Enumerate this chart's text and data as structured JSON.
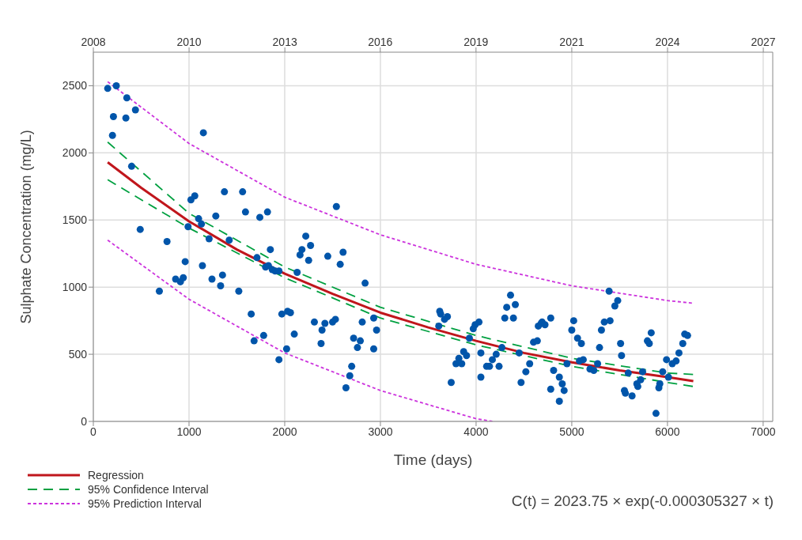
{
  "chart_data": {
    "type": "scatter",
    "xlabel": "Time (days)",
    "ylabel": "Sulphate Concentration (mg/L)",
    "xlim": [
      0,
      7100
    ],
    "xticks": [
      0,
      1000,
      2000,
      3000,
      4000,
      5000,
      6000,
      7000
    ],
    "x2lim": [
      2007.6,
      2027.04
    ],
    "x2ticks": [
      {
        "value": 2007.6,
        "label": "2008"
      },
      {
        "value": 2010.34,
        "label": "2010"
      },
      {
        "value": 2013.08,
        "label": "2013"
      },
      {
        "value": 2015.81,
        "label": "2016"
      },
      {
        "value": 2018.55,
        "label": "2019"
      },
      {
        "value": 2021.29,
        "label": "2021"
      },
      {
        "value": 2024.03,
        "label": "2024"
      },
      {
        "value": 2026.77,
        "label": "2027"
      }
    ],
    "ylim": [
      0,
      2750
    ],
    "yticks": [
      0,
      500,
      1000,
      1500,
      2000,
      2500
    ],
    "grid": true,
    "legend": "bottom left",
    "annotations": [
      "C(t) = 2023.75 × exp(-0.000305327 × t)"
    ],
    "series": [
      {
        "color": "#0055aa",
        "marker": "circle",
        "x": [
          150,
          240,
          350,
          210,
          340,
          440,
          200,
          1150,
          400,
          490,
          770,
          690,
          960,
          860,
          910,
          940,
          990,
          1020,
          1060,
          1100,
          1130,
          1210,
          1140,
          1240,
          1280,
          1330,
          1350,
          1370,
          1420,
          1520,
          1560,
          1590,
          1650,
          1680,
          1740,
          1780,
          1820,
          1850,
          1710,
          1800,
          1830,
          1870,
          1900,
          1940,
          1940,
          2020,
          1970,
          2030,
          2060,
          2130,
          2100,
          2220,
          2180,
          2160,
          2270,
          2250,
          2540,
          2450,
          2610,
          2580,
          2840,
          2310,
          2420,
          2390,
          2500,
          2530,
          2380,
          2720,
          2790,
          2760,
          2700,
          2680,
          2640,
          2810,
          2930,
          2960,
          2930,
          3620,
          3630,
          3700,
          3670,
          3610,
          3930,
          4030,
          3990,
          3970,
          3870,
          3900,
          3820,
          3790,
          3850,
          3740,
          4050,
          4050,
          4140,
          4110,
          4170,
          4210,
          4240,
          4270,
          4300,
          4320,
          4360,
          4390,
          4410,
          4450,
          4470,
          4520,
          4560,
          4600,
          4640,
          4650,
          4680,
          4690,
          4720,
          4780,
          4810,
          4780,
          4870,
          4900,
          4920,
          4870,
          4950,
          5000,
          5020,
          5060,
          5100,
          5080,
          5120,
          5190,
          5230,
          5270,
          5290,
          5310,
          5340,
          5400,
          5390,
          5480,
          5450,
          5510,
          5520,
          5590,
          5550,
          5560,
          5630,
          5690,
          5680,
          5720,
          5740,
          5790,
          5810,
          5830,
          5880,
          5920,
          5910,
          5950,
          6010,
          5990,
          6050,
          6090,
          6120,
          6160,
          6180,
          6210
        ],
        "values": [
          2480,
          2500,
          2410,
          2270,
          2260,
          2320,
          2130,
          2150,
          1900,
          1430,
          1340,
          970,
          1190,
          1060,
          1040,
          1070,
          1450,
          1650,
          1680,
          1510,
          1470,
          1360,
          1160,
          1060,
          1530,
          1010,
          1090,
          1710,
          1350,
          970,
          1710,
          1560,
          800,
          600,
          1520,
          640,
          1560,
          1280,
          1220,
          1150,
          1160,
          1130,
          1120,
          1120,
          460,
          540,
          800,
          820,
          810,
          1110,
          650,
          1380,
          1280,
          1240,
          1310,
          1200,
          1600,
          1230,
          1260,
          1170,
          1030,
          740,
          730,
          680,
          740,
          760,
          580,
          620,
          600,
          550,
          410,
          340,
          250,
          740,
          770,
          680,
          540,
          820,
          800,
          780,
          760,
          710,
          620,
          740,
          720,
          690,
          520,
          490,
          470,
          430,
          430,
          290,
          330,
          510,
          410,
          410,
          460,
          500,
          410,
          550,
          770,
          850,
          940,
          770,
          870,
          510,
          290,
          370,
          430,
          590,
          600,
          710,
          730,
          740,
          720,
          770,
          380,
          240,
          330,
          280,
          230,
          150,
          430,
          680,
          750,
          620,
          580,
          450,
          460,
          390,
          380,
          430,
          550,
          680,
          740,
          750,
          970,
          900,
          860,
          580,
          490,
          360,
          230,
          210,
          190,
          260,
          280,
          310,
          370,
          600,
          580,
          660,
          60,
          280,
          250,
          370,
          330,
          460,
          430,
          450,
          510,
          580,
          650,
          640
        ]
      },
      {
        "type": "line",
        "name": "Regression",
        "color": "#c0161c",
        "line_style": "solid",
        "marker": "none",
        "x": [
          150,
          500,
          1000,
          1500,
          2000,
          2500,
          3000,
          3500,
          4000,
          4500,
          5000,
          5500,
          6000,
          6270
        ],
        "values": [
          1930,
          1740,
          1490,
          1280,
          1100,
          950,
          810,
          700,
          600,
          510,
          440,
          380,
          330,
          300
        ]
      },
      {
        "type": "line",
        "name": "95% Confidence Interval",
        "color": "#00a040",
        "line_style": "dashed",
        "marker": "none",
        "x": [
          150,
          1000,
          2000,
          3000,
          4000,
          5000,
          6000,
          6270
        ],
        "values": [
          2080,
          1550,
          1150,
          850,
          640,
          470,
          360,
          350
        ]
      },
      {
        "type": "line",
        "color": "#00a040",
        "line_style": "dashed",
        "marker": "none",
        "x": [
          150,
          1000,
          2000,
          3000,
          4000,
          5000,
          6000,
          6270
        ],
        "values": [
          1800,
          1440,
          1070,
          770,
          570,
          410,
          290,
          260
        ]
      },
      {
        "type": "line",
        "name": "95% Prediction Interval",
        "color": "#cc33dd",
        "line_style": "dotted",
        "marker": "none",
        "x": [
          150,
          1000,
          2000,
          3000,
          4000,
          5000,
          6000,
          6270
        ],
        "values": [
          2530,
          2070,
          1670,
          1390,
          1170,
          1010,
          900,
          880
        ]
      },
      {
        "type": "line",
        "color": "#cc33dd",
        "line_style": "dotted",
        "marker": "none",
        "x": [
          150,
          1000,
          2000,
          3000,
          4000,
          4170
        ],
        "values": [
          1350,
          910,
          510,
          230,
          20,
          0
        ]
      }
    ]
  }
}
